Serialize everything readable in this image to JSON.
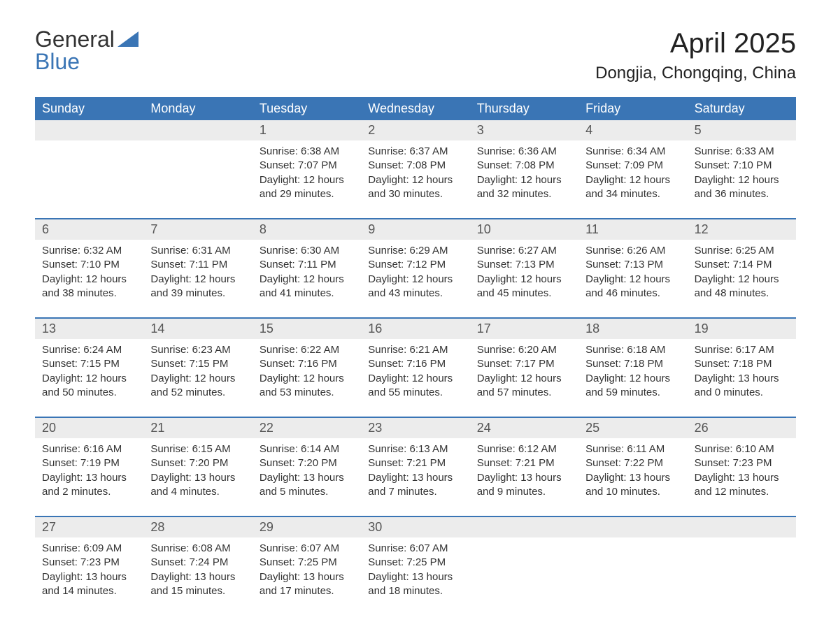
{
  "logo": {
    "text1": "General",
    "text2": "Blue"
  },
  "title": "April 2025",
  "subtitle": "Dongjia, Chongqing, China",
  "colors": {
    "header_bg": "#3a75b5",
    "header_text": "#ffffff",
    "daynum_bg": "#ececec",
    "week_border": "#3a75b5",
    "body_text": "#333333"
  },
  "day_names": [
    "Sunday",
    "Monday",
    "Tuesday",
    "Wednesday",
    "Thursday",
    "Friday",
    "Saturday"
  ],
  "weeks": [
    [
      {
        "num": "",
        "lines": []
      },
      {
        "num": "",
        "lines": []
      },
      {
        "num": "1",
        "lines": [
          "Sunrise: 6:38 AM",
          "Sunset: 7:07 PM",
          "Daylight: 12 hours",
          "and 29 minutes."
        ]
      },
      {
        "num": "2",
        "lines": [
          "Sunrise: 6:37 AM",
          "Sunset: 7:08 PM",
          "Daylight: 12 hours",
          "and 30 minutes."
        ]
      },
      {
        "num": "3",
        "lines": [
          "Sunrise: 6:36 AM",
          "Sunset: 7:08 PM",
          "Daylight: 12 hours",
          "and 32 minutes."
        ]
      },
      {
        "num": "4",
        "lines": [
          "Sunrise: 6:34 AM",
          "Sunset: 7:09 PM",
          "Daylight: 12 hours",
          "and 34 minutes."
        ]
      },
      {
        "num": "5",
        "lines": [
          "Sunrise: 6:33 AM",
          "Sunset: 7:10 PM",
          "Daylight: 12 hours",
          "and 36 minutes."
        ]
      }
    ],
    [
      {
        "num": "6",
        "lines": [
          "Sunrise: 6:32 AM",
          "Sunset: 7:10 PM",
          "Daylight: 12 hours",
          "and 38 minutes."
        ]
      },
      {
        "num": "7",
        "lines": [
          "Sunrise: 6:31 AM",
          "Sunset: 7:11 PM",
          "Daylight: 12 hours",
          "and 39 minutes."
        ]
      },
      {
        "num": "8",
        "lines": [
          "Sunrise: 6:30 AM",
          "Sunset: 7:11 PM",
          "Daylight: 12 hours",
          "and 41 minutes."
        ]
      },
      {
        "num": "9",
        "lines": [
          "Sunrise: 6:29 AM",
          "Sunset: 7:12 PM",
          "Daylight: 12 hours",
          "and 43 minutes."
        ]
      },
      {
        "num": "10",
        "lines": [
          "Sunrise: 6:27 AM",
          "Sunset: 7:13 PM",
          "Daylight: 12 hours",
          "and 45 minutes."
        ]
      },
      {
        "num": "11",
        "lines": [
          "Sunrise: 6:26 AM",
          "Sunset: 7:13 PM",
          "Daylight: 12 hours",
          "and 46 minutes."
        ]
      },
      {
        "num": "12",
        "lines": [
          "Sunrise: 6:25 AM",
          "Sunset: 7:14 PM",
          "Daylight: 12 hours",
          "and 48 minutes."
        ]
      }
    ],
    [
      {
        "num": "13",
        "lines": [
          "Sunrise: 6:24 AM",
          "Sunset: 7:15 PM",
          "Daylight: 12 hours",
          "and 50 minutes."
        ]
      },
      {
        "num": "14",
        "lines": [
          "Sunrise: 6:23 AM",
          "Sunset: 7:15 PM",
          "Daylight: 12 hours",
          "and 52 minutes."
        ]
      },
      {
        "num": "15",
        "lines": [
          "Sunrise: 6:22 AM",
          "Sunset: 7:16 PM",
          "Daylight: 12 hours",
          "and 53 minutes."
        ]
      },
      {
        "num": "16",
        "lines": [
          "Sunrise: 6:21 AM",
          "Sunset: 7:16 PM",
          "Daylight: 12 hours",
          "and 55 minutes."
        ]
      },
      {
        "num": "17",
        "lines": [
          "Sunrise: 6:20 AM",
          "Sunset: 7:17 PM",
          "Daylight: 12 hours",
          "and 57 minutes."
        ]
      },
      {
        "num": "18",
        "lines": [
          "Sunrise: 6:18 AM",
          "Sunset: 7:18 PM",
          "Daylight: 12 hours",
          "and 59 minutes."
        ]
      },
      {
        "num": "19",
        "lines": [
          "Sunrise: 6:17 AM",
          "Sunset: 7:18 PM",
          "Daylight: 13 hours",
          "and 0 minutes."
        ]
      }
    ],
    [
      {
        "num": "20",
        "lines": [
          "Sunrise: 6:16 AM",
          "Sunset: 7:19 PM",
          "Daylight: 13 hours",
          "and 2 minutes."
        ]
      },
      {
        "num": "21",
        "lines": [
          "Sunrise: 6:15 AM",
          "Sunset: 7:20 PM",
          "Daylight: 13 hours",
          "and 4 minutes."
        ]
      },
      {
        "num": "22",
        "lines": [
          "Sunrise: 6:14 AM",
          "Sunset: 7:20 PM",
          "Daylight: 13 hours",
          "and 5 minutes."
        ]
      },
      {
        "num": "23",
        "lines": [
          "Sunrise: 6:13 AM",
          "Sunset: 7:21 PM",
          "Daylight: 13 hours",
          "and 7 minutes."
        ]
      },
      {
        "num": "24",
        "lines": [
          "Sunrise: 6:12 AM",
          "Sunset: 7:21 PM",
          "Daylight: 13 hours",
          "and 9 minutes."
        ]
      },
      {
        "num": "25",
        "lines": [
          "Sunrise: 6:11 AM",
          "Sunset: 7:22 PM",
          "Daylight: 13 hours",
          "and 10 minutes."
        ]
      },
      {
        "num": "26",
        "lines": [
          "Sunrise: 6:10 AM",
          "Sunset: 7:23 PM",
          "Daylight: 13 hours",
          "and 12 minutes."
        ]
      }
    ],
    [
      {
        "num": "27",
        "lines": [
          "Sunrise: 6:09 AM",
          "Sunset: 7:23 PM",
          "Daylight: 13 hours",
          "and 14 minutes."
        ]
      },
      {
        "num": "28",
        "lines": [
          "Sunrise: 6:08 AM",
          "Sunset: 7:24 PM",
          "Daylight: 13 hours",
          "and 15 minutes."
        ]
      },
      {
        "num": "29",
        "lines": [
          "Sunrise: 6:07 AM",
          "Sunset: 7:25 PM",
          "Daylight: 13 hours",
          "and 17 minutes."
        ]
      },
      {
        "num": "30",
        "lines": [
          "Sunrise: 6:07 AM",
          "Sunset: 7:25 PM",
          "Daylight: 13 hours",
          "and 18 minutes."
        ]
      },
      {
        "num": "",
        "lines": []
      },
      {
        "num": "",
        "lines": []
      },
      {
        "num": "",
        "lines": []
      }
    ]
  ]
}
